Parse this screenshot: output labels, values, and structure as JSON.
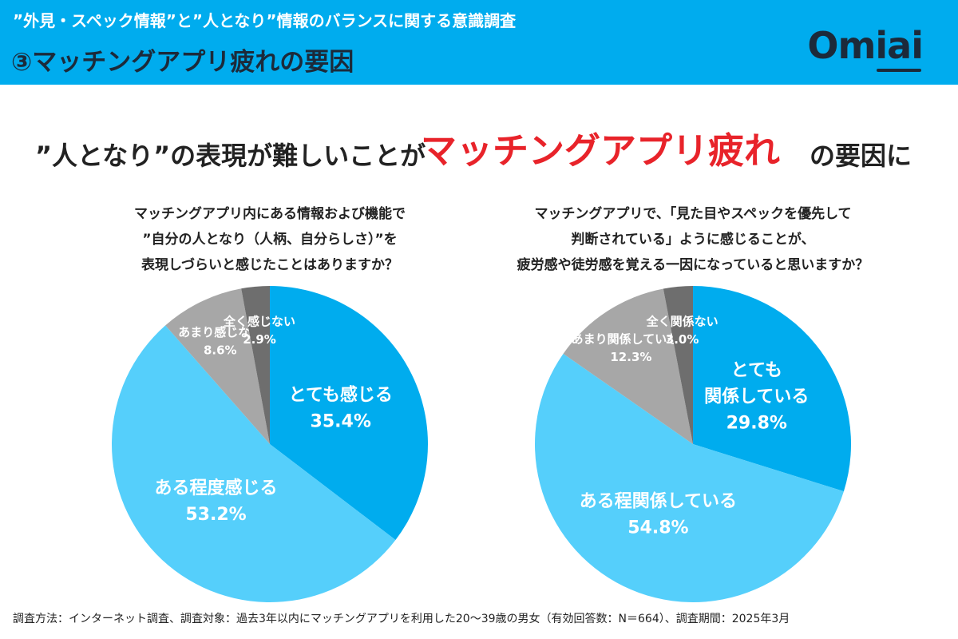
{
  "header": {
    "subtitle": "”外見・スペック情報”と”人となり”情報のバランスに関する意識調査",
    "title": "③マッチングアプリ疲れの要因",
    "logo": "Omiai"
  },
  "headline": {
    "before": "”人となり”の表現が難しいことが",
    "accent": "マッチングアプリ疲れ",
    "after": "の要因に"
  },
  "colors": {
    "header_bg": "#00acee",
    "accent_red": "#e8232a",
    "slice_dark_blue": "#00acee",
    "slice_light_blue": "#55cffb",
    "slice_gray": "#a7a7a7",
    "slice_dark_gray": "#6e6e6e"
  },
  "chart_data": [
    {
      "type": "pie",
      "question_lines": [
        "マッチングアプリ内にある情報および機能で",
        "”自分の人となり（人柄、自分らしさ）”を",
        "表現しづらいと感じたことはありますか？"
      ],
      "slices": [
        {
          "label_lines": [
            "とても感じる"
          ],
          "value": 35.4,
          "display": "35.4%",
          "color": "#00acee",
          "label_size": "large"
        },
        {
          "label_lines": [
            "ある程度感じる"
          ],
          "value": 53.2,
          "display": "53.2%",
          "color": "#55cffb",
          "label_size": "large"
        },
        {
          "label_lines": [
            "あまり感じない"
          ],
          "value": 8.6,
          "display": "8.6%",
          "color": "#a7a7a7",
          "label_size": "small"
        },
        {
          "label_lines": [
            "全く感じない"
          ],
          "value": 2.9,
          "display": "2.9%",
          "color": "#6e6e6e",
          "label_size": "small"
        }
      ]
    },
    {
      "type": "pie",
      "question_lines": [
        "マッチングアプリで、「見た目やスペックを優先して",
        "判断されている」ように感じることが、",
        "疲労感や徒労感を覚える一因になっていると思いますか？"
      ],
      "slices": [
        {
          "label_lines": [
            "とても",
            "関係している"
          ],
          "value": 29.8,
          "display": "29.8%",
          "color": "#00acee",
          "label_size": "large"
        },
        {
          "label_lines": [
            "ある程関係している"
          ],
          "value": 54.8,
          "display": "54.8%",
          "color": "#55cffb",
          "label_size": "large"
        },
        {
          "label_lines": [
            "あまり関係していない"
          ],
          "value": 12.3,
          "display": "12.3%",
          "color": "#a7a7a7",
          "label_size": "small"
        },
        {
          "label_lines": [
            "全く関係ない"
          ],
          "value": 3.0,
          "display": "3.0%",
          "color": "#6e6e6e",
          "label_size": "small"
        }
      ]
    }
  ],
  "footnote": "調査方法：インターネット調査、調査対象：過去3年以内にマッチングアプリを利用した20〜39歳の男女（有効回答数：N＝664）、調査期間：2025年3月"
}
